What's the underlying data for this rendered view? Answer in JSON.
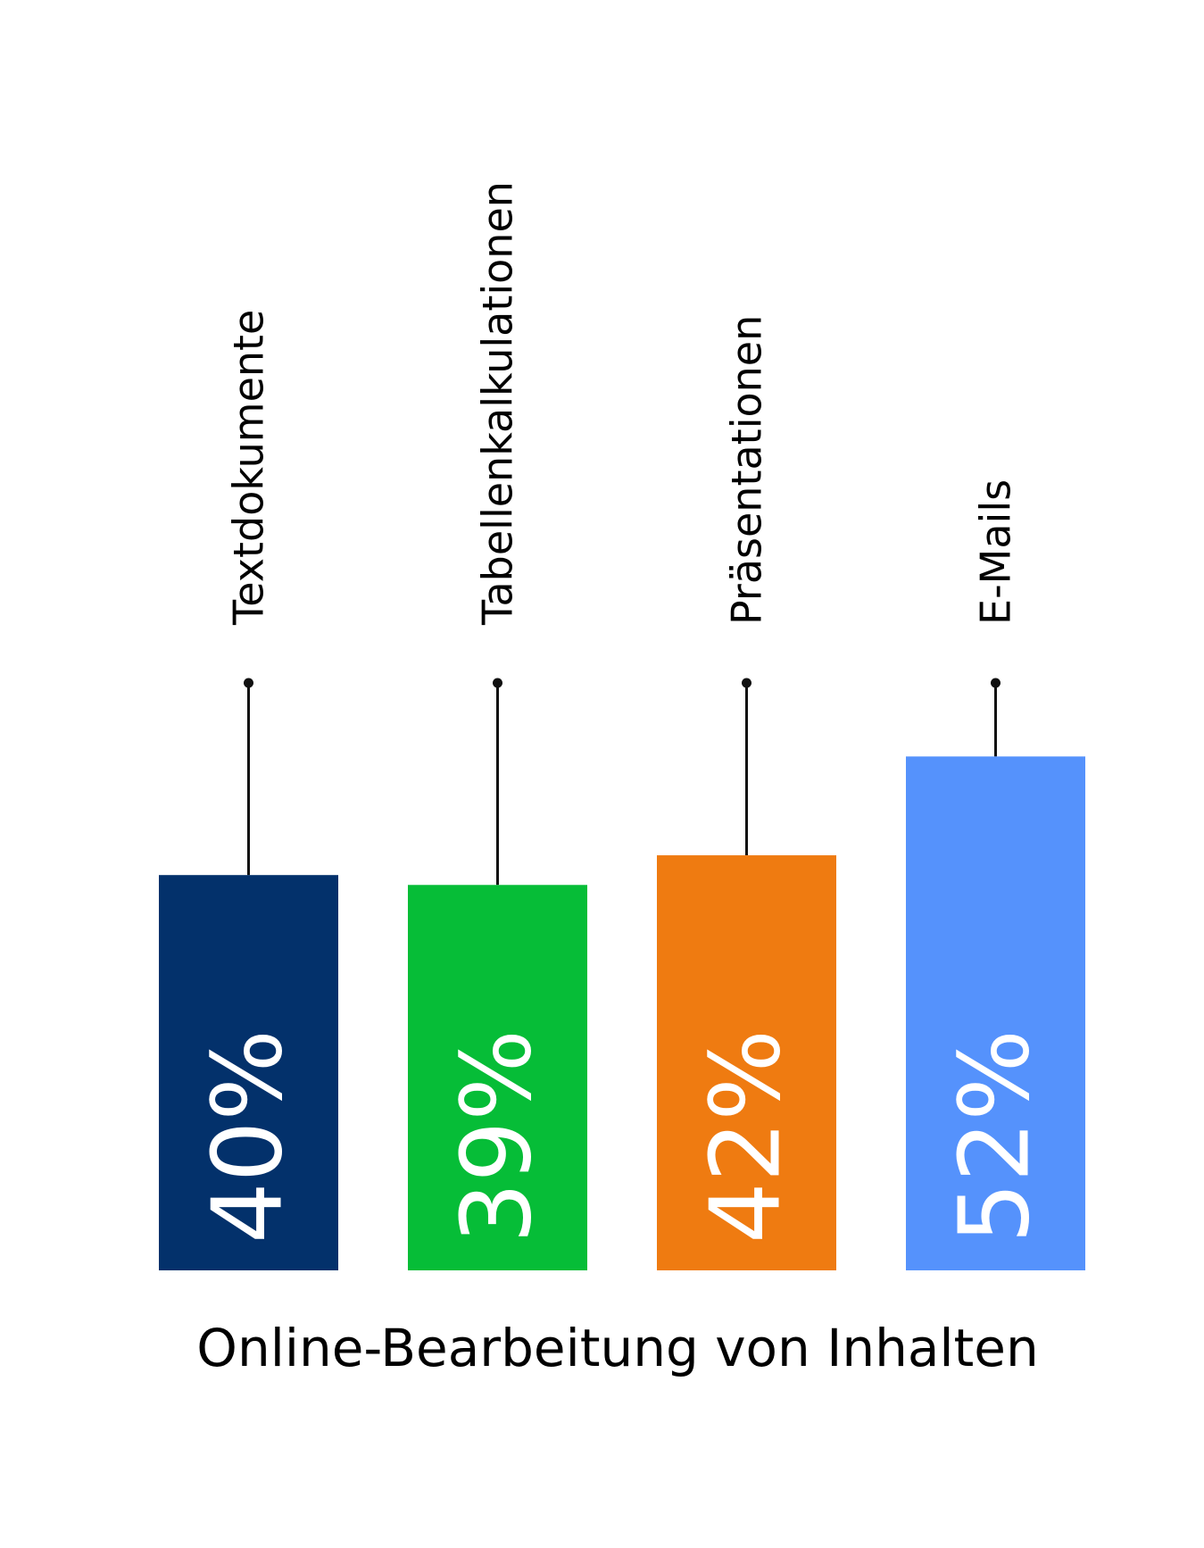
{
  "chart_data": {
    "type": "bar",
    "title": "Online-Bearbeitung von Inhalten",
    "categories": [
      "Textdokumente",
      "Tabellenkalkulationen",
      "Präsentationen",
      "E-Mails"
    ],
    "values": [
      40,
      39,
      42,
      52
    ],
    "value_labels": [
      "40%",
      "39%",
      "42%",
      "52%"
    ],
    "unit": "%",
    "colors": [
      "#03316b",
      "#06bd37",
      "#ef7b11",
      "#5592fc"
    ],
    "ylim": [
      0,
      100
    ],
    "grid": false,
    "legend": "none",
    "xlabel": "",
    "ylabel": ""
  }
}
